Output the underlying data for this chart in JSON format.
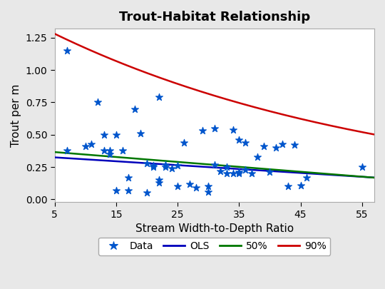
{
  "title": "Trout-Habitat Relationship",
  "xlabel": "Stream Width-to-Depth Ratio",
  "ylabel": "Trout per m",
  "xlim": [
    5,
    57
  ],
  "ylim": [
    -0.02,
    1.32
  ],
  "xticks": [
    5,
    15,
    25,
    35,
    45,
    55
  ],
  "yticks": [
    0.0,
    0.25,
    0.5,
    0.75,
    1.0,
    1.25
  ],
  "scatter_x": [
    7,
    7,
    10,
    11,
    12,
    13,
    13,
    14,
    14,
    15,
    15,
    16,
    17,
    17,
    18,
    19,
    20,
    20,
    21,
    21,
    22,
    22,
    22,
    23,
    23,
    24,
    25,
    25,
    26,
    27,
    28,
    29,
    30,
    30,
    31,
    31,
    32,
    33,
    33,
    34,
    34,
    35,
    35,
    35,
    36,
    36,
    37,
    38,
    39,
    40,
    41,
    42,
    43,
    44,
    45,
    46,
    55
  ],
  "scatter_y": [
    1.15,
    0.38,
    0.41,
    0.43,
    0.75,
    0.38,
    0.5,
    0.38,
    0.35,
    0.5,
    0.07,
    0.38,
    0.17,
    0.07,
    0.7,
    0.51,
    0.28,
    0.05,
    0.25,
    0.26,
    0.13,
    0.15,
    0.79,
    0.27,
    0.25,
    0.24,
    0.1,
    0.26,
    0.44,
    0.12,
    0.09,
    0.53,
    0.1,
    0.06,
    0.27,
    0.55,
    0.22,
    0.2,
    0.25,
    0.54,
    0.2,
    0.21,
    0.2,
    0.46,
    0.23,
    0.44,
    0.2,
    0.33,
    0.41,
    0.21,
    0.4,
    0.43,
    0.1,
    0.42,
    0.11,
    0.17,
    0.25
  ],
  "scatter_color": "#0055CC",
  "ols_color": "#0000BB",
  "p50_color": "#007700",
  "p90_color": "#CC0000",
  "ols_intercept": 0.34,
  "ols_slope": -0.003,
  "p50_intercept": 0.385,
  "p50_slope": -0.0038,
  "p90_a": 1.28,
  "p90_b": -0.018,
  "background_color": "#e8e8e8",
  "plot_background": "#ffffff",
  "title_fontsize": 13,
  "label_fontsize": 11
}
